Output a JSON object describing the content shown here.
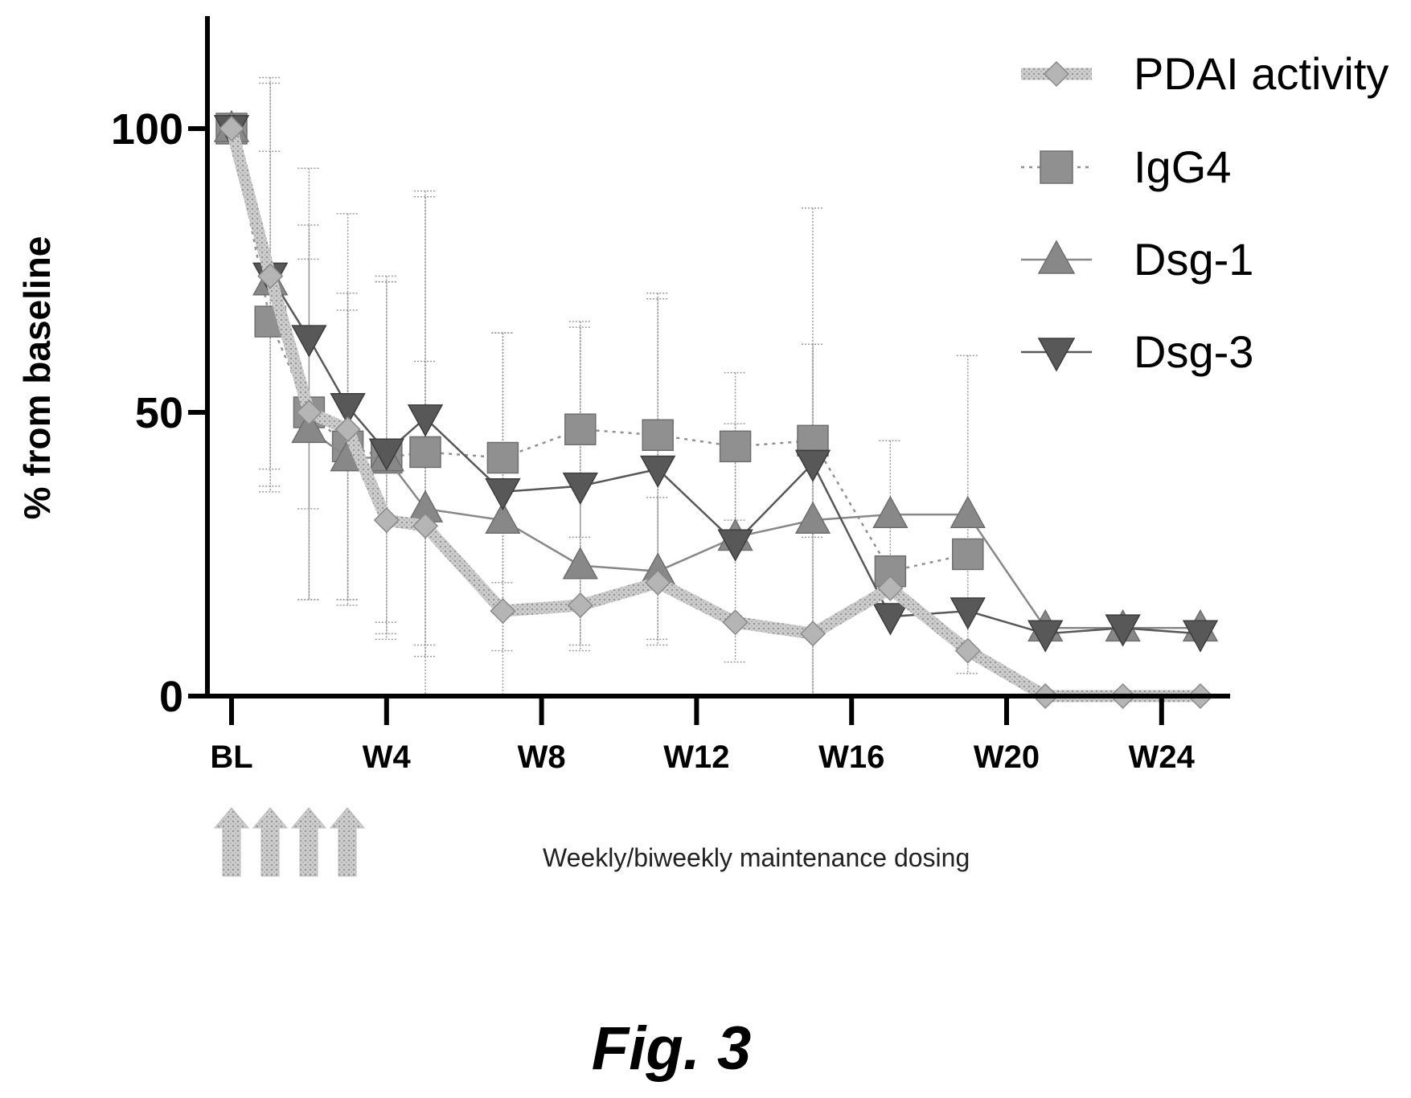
{
  "chart_data": {
    "type": "line",
    "ylabel": "% from baseline",
    "xlabel": "",
    "ylim": [
      0,
      120
    ],
    "yticks": [
      "0",
      "50",
      "100"
    ],
    "xlim": [
      -0.5,
      25.5
    ],
    "xticks": [
      {
        "x": 0,
        "label": "BL"
      },
      {
        "x": 4,
        "label": "W4"
      },
      {
        "x": 8,
        "label": "W8"
      },
      {
        "x": 12,
        "label": "W12"
      },
      {
        "x": 16,
        "label": "W16"
      },
      {
        "x": 20,
        "label": "W20"
      },
      {
        "x": 24,
        "label": "W24"
      }
    ],
    "legend_position": "top-right",
    "series": [
      {
        "name": "PDAI activity",
        "marker": "diamond",
        "line": "thick",
        "color": "#a8a8a8",
        "points": [
          {
            "x": 0,
            "y": 100
          },
          {
            "x": 1,
            "y": 74
          },
          {
            "x": 2,
            "y": 50
          },
          {
            "x": 3,
            "y": 47
          },
          {
            "x": 4,
            "y": 31
          },
          {
            "x": 5,
            "y": 30
          },
          {
            "x": 7,
            "y": 15
          },
          {
            "x": 9,
            "y": 16
          },
          {
            "x": 11,
            "y": 20
          },
          {
            "x": 13,
            "y": 13
          },
          {
            "x": 15,
            "y": 11
          },
          {
            "x": 17,
            "y": 19
          },
          {
            "x": 19,
            "y": 8
          },
          {
            "x": 21,
            "y": 0
          },
          {
            "x": 23,
            "y": 0
          },
          {
            "x": 25,
            "y": 0
          }
        ]
      },
      {
        "name": "IgG4",
        "marker": "square",
        "line": "dotted",
        "color": "#909090",
        "points": [
          {
            "x": 0,
            "y": 100,
            "err": 0
          },
          {
            "x": 1,
            "y": 66,
            "err": 30
          },
          {
            "x": 2,
            "y": 50,
            "err": 33
          },
          {
            "x": 3,
            "y": 44,
            "err": 27
          },
          {
            "x": 4,
            "y": 42,
            "err": 32
          },
          {
            "x": 5,
            "y": 43,
            "err": 45
          },
          {
            "x": 7,
            "y": 42,
            "err": 22
          },
          {
            "x": 9,
            "y": 47,
            "err": 19
          },
          {
            "x": 11,
            "y": 46,
            "err": 25
          },
          {
            "x": 13,
            "y": 44,
            "err": 13
          },
          {
            "x": 15,
            "y": 45,
            "err": 17
          },
          {
            "x": 17,
            "y": 22,
            "err": 0
          },
          {
            "x": 19,
            "y": 25,
            "err": 0
          }
        ]
      },
      {
        "name": "Dsg-1",
        "marker": "triangle-up",
        "line": "thin",
        "color": "#888888",
        "points": [
          {
            "x": 0,
            "y": 100,
            "err": 0
          },
          {
            "x": 1,
            "y": 73,
            "err": 36
          },
          {
            "x": 2,
            "y": 47,
            "err": 30
          },
          {
            "x": 3,
            "y": 42,
            "err": 26
          },
          {
            "x": 4,
            "y": 42,
            "err": 31
          },
          {
            "x": 5,
            "y": 33,
            "err": 26
          },
          {
            "x": 7,
            "y": 31,
            "err": 33
          },
          {
            "x": 9,
            "y": 23,
            "err": 15
          },
          {
            "x": 11,
            "y": 22,
            "err": 13
          },
          {
            "x": 13,
            "y": 28,
            "err": 0
          },
          {
            "x": 15,
            "y": 31,
            "err": 31
          },
          {
            "x": 17,
            "y": 32,
            "err": 13
          },
          {
            "x": 19,
            "y": 32,
            "err": 28
          },
          {
            "x": 21,
            "y": 12,
            "err": 0
          },
          {
            "x": 23,
            "y": 12,
            "err": 0
          },
          {
            "x": 25,
            "y": 12,
            "err": 0
          }
        ]
      },
      {
        "name": "Dsg-3",
        "marker": "triangle-down",
        "line": "thin",
        "color": "#585858",
        "points": [
          {
            "x": 0,
            "y": 100,
            "err": 0
          },
          {
            "x": 1,
            "y": 74,
            "err": 34
          },
          {
            "x": 2,
            "y": 63,
            "err": 30
          },
          {
            "x": 3,
            "y": 51,
            "err": 34
          },
          {
            "x": 4,
            "y": 43,
            "err": 30
          },
          {
            "x": 5,
            "y": 49,
            "err": 40
          },
          {
            "x": 7,
            "y": 36,
            "err": 28
          },
          {
            "x": 9,
            "y": 37,
            "err": 28
          },
          {
            "x": 11,
            "y": 40,
            "err": 30
          },
          {
            "x": 13,
            "y": 27,
            "err": 21
          },
          {
            "x": 15,
            "y": 41,
            "err": 45
          },
          {
            "x": 17,
            "y": 14,
            "err": 0
          },
          {
            "x": 19,
            "y": 15,
            "err": 0
          },
          {
            "x": 21,
            "y": 11,
            "err": 0
          },
          {
            "x": 23,
            "y": 12,
            "err": 0
          },
          {
            "x": 25,
            "y": 11,
            "err": 0
          }
        ]
      }
    ],
    "dosing_arrows": {
      "count": 4,
      "color": "#bdbdbd"
    },
    "annotation": "Weekly/biweekly maintenance dosing"
  },
  "figure_label": "Fig. 3"
}
